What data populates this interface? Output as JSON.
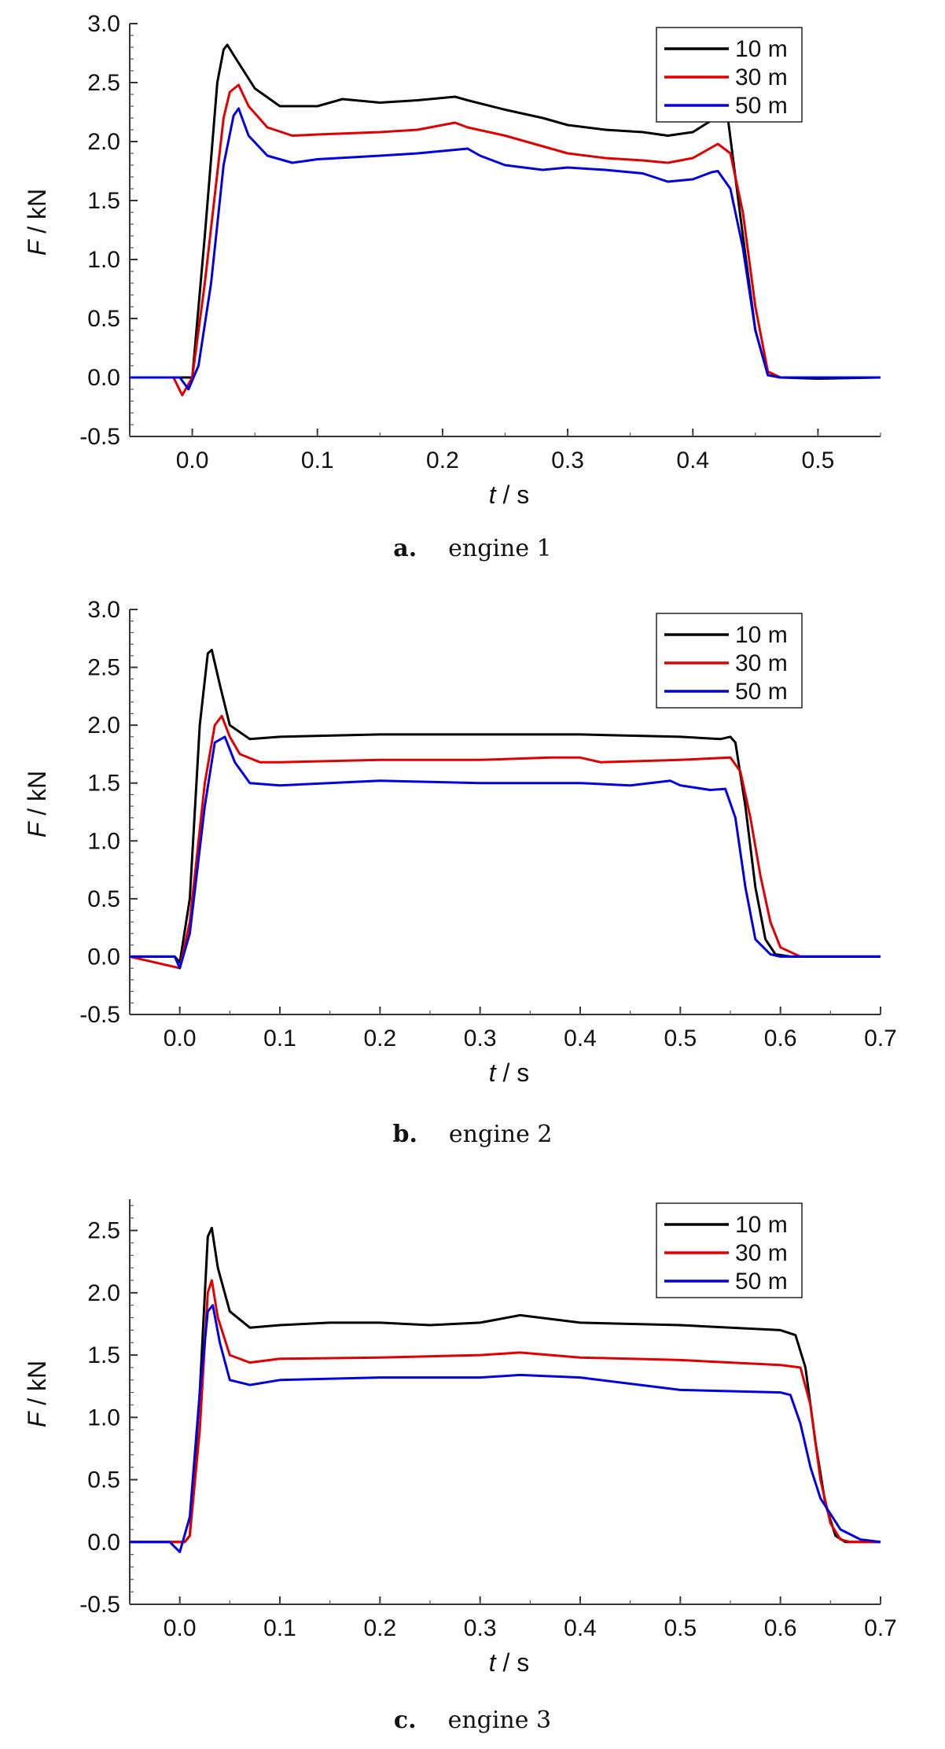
{
  "colors": {
    "s10": "#000000",
    "s30": "#e00000",
    "s50": "#0000e0"
  },
  "chart_data": [
    {
      "type": "line",
      "caption_letter": "a.",
      "caption_text": "engine 1",
      "xlabel_italic": "t",
      "xlabel_unit": " / s",
      "ylabel_italic": "F",
      "ylabel_unit": " / kN",
      "xlim": [
        -0.05,
        0.55
      ],
      "ylim": [
        -0.5,
        3.0
      ],
      "xticks": [
        "0.0",
        "0.1",
        "0.2",
        "0.3",
        "0.4",
        "0.5"
      ],
      "yticks": [
        "-0.5",
        "0.0",
        "0.5",
        "1.0",
        "1.5",
        "2.0",
        "2.5",
        "3.0"
      ],
      "legend_position": "top-right",
      "series": [
        {
          "name": "10 m",
          "color": "#000000",
          "x": [
            -0.05,
            -0.015,
            0.0,
            0.01,
            0.02,
            0.025,
            0.028,
            0.035,
            0.05,
            0.07,
            0.1,
            0.12,
            0.15,
            0.18,
            0.2,
            0.21,
            0.22,
            0.25,
            0.28,
            0.3,
            0.33,
            0.36,
            0.38,
            0.4,
            0.415,
            0.422,
            0.428,
            0.44,
            0.45,
            0.46,
            0.47,
            0.5,
            0.55
          ],
          "y": [
            0.0,
            0.0,
            0.0,
            1.2,
            2.5,
            2.78,
            2.82,
            2.7,
            2.45,
            2.3,
            2.3,
            2.36,
            2.33,
            2.35,
            2.37,
            2.38,
            2.35,
            2.27,
            2.2,
            2.14,
            2.1,
            2.08,
            2.05,
            2.08,
            2.18,
            2.22,
            2.2,
            1.2,
            0.4,
            0.02,
            0.0,
            -0.01,
            0.0
          ]
        },
        {
          "name": "30 m",
          "color": "#e00000",
          "x": [
            -0.05,
            -0.015,
            -0.008,
            0.0,
            0.01,
            0.025,
            0.03,
            0.037,
            0.045,
            0.06,
            0.08,
            0.1,
            0.15,
            0.18,
            0.2,
            0.21,
            0.22,
            0.25,
            0.28,
            0.3,
            0.33,
            0.36,
            0.38,
            0.4,
            0.415,
            0.42,
            0.43,
            0.44,
            0.45,
            0.46,
            0.47,
            0.5,
            0.55
          ],
          "y": [
            0.0,
            0.0,
            -0.15,
            0.0,
            0.8,
            2.2,
            2.42,
            2.48,
            2.3,
            2.12,
            2.05,
            2.06,
            2.08,
            2.1,
            2.14,
            2.16,
            2.12,
            2.05,
            1.96,
            1.9,
            1.86,
            1.84,
            1.82,
            1.86,
            1.95,
            1.98,
            1.9,
            1.4,
            0.6,
            0.05,
            0.0,
            0.0,
            0.0
          ]
        },
        {
          "name": "50 m",
          "color": "#0000e0",
          "x": [
            -0.05,
            -0.01,
            -0.003,
            0.005,
            0.015,
            0.025,
            0.033,
            0.037,
            0.045,
            0.06,
            0.08,
            0.1,
            0.15,
            0.18,
            0.2,
            0.22,
            0.23,
            0.25,
            0.28,
            0.3,
            0.33,
            0.36,
            0.38,
            0.4,
            0.415,
            0.42,
            0.43,
            0.44,
            0.45,
            0.46,
            0.47,
            0.5,
            0.55
          ],
          "y": [
            0.0,
            0.0,
            -0.1,
            0.1,
            0.8,
            1.8,
            2.22,
            2.28,
            2.05,
            1.88,
            1.82,
            1.85,
            1.88,
            1.9,
            1.92,
            1.94,
            1.88,
            1.8,
            1.76,
            1.78,
            1.76,
            1.73,
            1.66,
            1.68,
            1.74,
            1.75,
            1.6,
            1.1,
            0.4,
            0.02,
            0.0,
            0.0,
            0.0
          ]
        }
      ]
    },
    {
      "type": "line",
      "caption_letter": "b.",
      "caption_text": "engine 2",
      "xlabel_italic": "t",
      "xlabel_unit": " / s",
      "ylabel_italic": "F",
      "ylabel_unit": " / kN",
      "xlim": [
        -0.05,
        0.7
      ],
      "ylim": [
        -0.5,
        3.0
      ],
      "xticks": [
        "0.0",
        "0.1",
        "0.2",
        "0.3",
        "0.4",
        "0.5",
        "0.6",
        "0.7"
      ],
      "yticks": [
        "-0.5",
        "0.0",
        "0.5",
        "1.0",
        "1.5",
        "2.0",
        "2.5",
        "3.0"
      ],
      "legend_position": "top-right",
      "series": [
        {
          "name": "10 m",
          "color": "#000000",
          "x": [
            -0.05,
            -0.005,
            0.0,
            0.01,
            0.02,
            0.028,
            0.032,
            0.04,
            0.05,
            0.07,
            0.1,
            0.2,
            0.3,
            0.4,
            0.5,
            0.54,
            0.55,
            0.555,
            0.565,
            0.575,
            0.585,
            0.595,
            0.61,
            0.7
          ],
          "y": [
            0.0,
            0.0,
            -0.05,
            0.5,
            2.0,
            2.62,
            2.65,
            2.35,
            2.0,
            1.88,
            1.9,
            1.92,
            1.92,
            1.92,
            1.9,
            1.88,
            1.9,
            1.85,
            1.3,
            0.6,
            0.15,
            0.02,
            0.0,
            0.0
          ]
        },
        {
          "name": "30 m",
          "color": "#e00000",
          "x": [
            -0.05,
            0.0,
            0.01,
            0.025,
            0.035,
            0.042,
            0.05,
            0.06,
            0.08,
            0.1,
            0.2,
            0.3,
            0.37,
            0.4,
            0.42,
            0.5,
            0.55,
            0.56,
            0.57,
            0.58,
            0.59,
            0.6,
            0.62,
            0.7
          ],
          "y": [
            0.0,
            -0.1,
            0.3,
            1.5,
            2.0,
            2.08,
            1.9,
            1.75,
            1.68,
            1.68,
            1.7,
            1.7,
            1.72,
            1.72,
            1.68,
            1.7,
            1.72,
            1.6,
            1.2,
            0.7,
            0.3,
            0.08,
            0.0,
            0.0
          ]
        },
        {
          "name": "50 m",
          "color": "#0000e0",
          "x": [
            -0.05,
            -0.005,
            0.0,
            0.01,
            0.025,
            0.035,
            0.045,
            0.055,
            0.07,
            0.1,
            0.2,
            0.3,
            0.4,
            0.45,
            0.49,
            0.5,
            0.53,
            0.545,
            0.555,
            0.565,
            0.575,
            0.59,
            0.6,
            0.7
          ],
          "y": [
            0.0,
            0.0,
            -0.1,
            0.2,
            1.3,
            1.85,
            1.9,
            1.68,
            1.5,
            1.48,
            1.52,
            1.5,
            1.5,
            1.48,
            1.52,
            1.48,
            1.44,
            1.45,
            1.2,
            0.6,
            0.15,
            0.02,
            0.0,
            0.0
          ]
        }
      ]
    },
    {
      "type": "line",
      "caption_letter": "c.",
      "caption_text": "engine 3",
      "xlabel_italic": "t",
      "xlabel_unit": " / s",
      "ylabel_italic": "F",
      "ylabel_unit": " / kN",
      "xlim": [
        -0.05,
        0.7
      ],
      "ylim": [
        -0.5,
        2.75
      ],
      "xticks": [
        "0.0",
        "0.1",
        "0.2",
        "0.3",
        "0.4",
        "0.5",
        "0.6",
        "0.7"
      ],
      "yticks": [
        "-0.5",
        "0.0",
        "0.5",
        "1.0",
        "1.5",
        "2.0",
        "2.5"
      ],
      "legend_position": "top-right",
      "series": [
        {
          "name": "10 m",
          "color": "#000000",
          "x": [
            -0.05,
            0.005,
            0.01,
            0.02,
            0.028,
            0.032,
            0.038,
            0.05,
            0.07,
            0.1,
            0.15,
            0.2,
            0.25,
            0.3,
            0.34,
            0.4,
            0.5,
            0.6,
            0.615,
            0.625,
            0.635,
            0.645,
            0.655,
            0.665,
            0.7
          ],
          "y": [
            0.0,
            0.0,
            0.05,
            1.2,
            2.45,
            2.52,
            2.2,
            1.85,
            1.72,
            1.74,
            1.76,
            1.76,
            1.74,
            1.76,
            1.82,
            1.76,
            1.74,
            1.7,
            1.66,
            1.4,
            0.8,
            0.3,
            0.05,
            0.0,
            0.0
          ]
        },
        {
          "name": "30 m",
          "color": "#e00000",
          "x": [
            -0.05,
            0.005,
            0.01,
            0.02,
            0.028,
            0.032,
            0.038,
            0.05,
            0.07,
            0.1,
            0.2,
            0.3,
            0.34,
            0.4,
            0.5,
            0.6,
            0.62,
            0.63,
            0.64,
            0.65,
            0.66,
            0.67,
            0.7
          ],
          "y": [
            0.0,
            0.0,
            0.05,
            0.9,
            2.0,
            2.1,
            1.8,
            1.5,
            1.44,
            1.47,
            1.48,
            1.5,
            1.52,
            1.48,
            1.46,
            1.42,
            1.4,
            1.1,
            0.5,
            0.15,
            0.02,
            0.0,
            0.0
          ]
        },
        {
          "name": "50 m",
          "color": "#0000e0",
          "x": [
            -0.05,
            -0.01,
            0.0,
            0.01,
            0.02,
            0.028,
            0.033,
            0.04,
            0.05,
            0.07,
            0.1,
            0.2,
            0.3,
            0.34,
            0.4,
            0.5,
            0.6,
            0.61,
            0.62,
            0.63,
            0.64,
            0.66,
            0.68,
            0.7
          ],
          "y": [
            0.0,
            0.0,
            -0.08,
            0.2,
            1.2,
            1.85,
            1.9,
            1.6,
            1.3,
            1.26,
            1.3,
            1.32,
            1.32,
            1.34,
            1.32,
            1.22,
            1.2,
            1.18,
            0.95,
            0.6,
            0.35,
            0.1,
            0.02,
            0.0
          ]
        }
      ]
    }
  ]
}
